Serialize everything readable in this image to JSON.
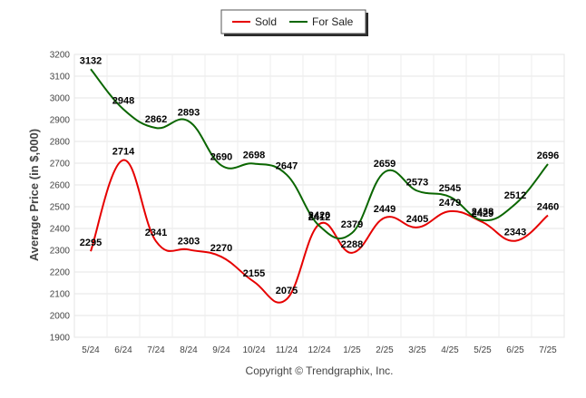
{
  "chart_data": {
    "type": "line",
    "ylabel": "Average Price (in $,000)",
    "credit": "Copyright © Trendgraphix, Inc.",
    "ylim": [
      1900,
      3200
    ],
    "yticks": [
      1900,
      2000,
      2100,
      2200,
      2300,
      2400,
      2500,
      2600,
      2700,
      2800,
      2900,
      3000,
      3100,
      3200
    ],
    "categories": [
      "5/24",
      "6/24",
      "7/24",
      "8/24",
      "9/24",
      "10/24",
      "11/24",
      "12/24",
      "1/25",
      "2/25",
      "3/25",
      "4/25",
      "5/25",
      "6/25",
      "7/25"
    ],
    "legend_position": "top-center",
    "grid": true,
    "series": [
      {
        "name": "Sold",
        "color": "#e60000",
        "values": [
          2295,
          2714,
          2341,
          2303,
          2270,
          2155,
          2075,
          2420,
          2288,
          2449,
          2405,
          2479,
          2429,
          2343,
          2460
        ],
        "labels": [
          "2295",
          "2714",
          "2341",
          "2303",
          "2270",
          "2155",
          "2075",
          "2420",
          "2288",
          "2449",
          "2405",
          "2479",
          "2429",
          "2343",
          "2460"
        ]
      },
      {
        "name": "For Sale",
        "color": "#0a6600",
        "values": [
          3132,
          2948,
          2862,
          2893,
          2690,
          2698,
          2647,
          2412,
          2379,
          2659,
          2573,
          2545,
          2438,
          2512,
          2696
        ],
        "labels": [
          "3132",
          "2948",
          "2862",
          "2893",
          "2690",
          "2698",
          "2647",
          "2412",
          "2379",
          "2659",
          "2573",
          "2545",
          "2438",
          "2512",
          "2696"
        ]
      }
    ]
  }
}
